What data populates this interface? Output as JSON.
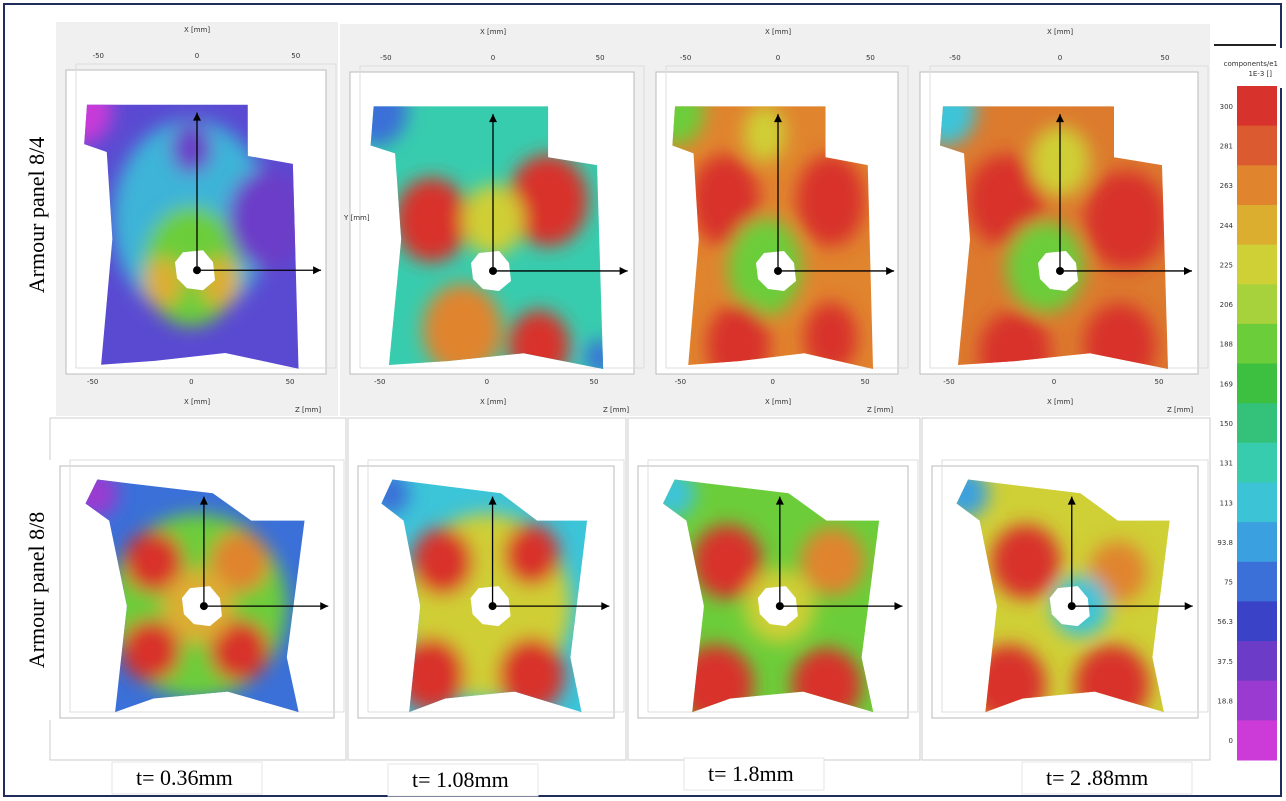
{
  "row_labels": [
    "Armour panel 8/4",
    "Armour panel 8/8"
  ],
  "time_labels": [
    "t= 0.36mm",
    "t= 1.08mm",
    "t= 1.8mm",
    "t= 2 .88mm"
  ],
  "colorbar": {
    "title": "components/e1",
    "unit": "1E-3 []",
    "labels": [
      "300",
      "281",
      "263",
      "244",
      "225",
      "206",
      "188",
      "169",
      "150",
      "131",
      "113",
      "93.8",
      "75",
      "56.3",
      "37.5",
      "18.8",
      "0"
    ],
    "colors": [
      "#d8322c",
      "#dc5a30",
      "#e0842e",
      "#dcae30",
      "#cfcf36",
      "#a8d23c",
      "#6ccd3a",
      "#3dc040",
      "#34c27a",
      "#38ccae",
      "#3cc4d6",
      "#3aa0e0",
      "#3a70d8",
      "#3a42c8",
      "#6c3cc8",
      "#9a3ad0",
      "#cc3ad8"
    ]
  },
  "panels": [
    {
      "axis_top": "X [mm]",
      "axis_bottom": "X [mm]",
      "axis_depth": "Z [mm]",
      "ticks": [
        "-50",
        "0",
        "50"
      ]
    },
    {
      "axis_top": "X [mm]",
      "axis_side": "Y [mm]",
      "axis_bottom": "X [mm]",
      "axis_depth": "Z [mm]",
      "ticks": [
        "-50",
        "0",
        "50"
      ]
    },
    {
      "axis_top": "X [mm]",
      "axis_bottom": "X [mm]",
      "axis_depth": "Z [mm]",
      "ticks": [
        "-50",
        "0",
        "50"
      ]
    },
    {
      "axis_top": "X [mm]",
      "axis_bottom": "X [mm]",
      "axis_depth": "Z [mm]",
      "ticks": [
        "-50",
        "0",
        "50"
      ]
    }
  ]
}
